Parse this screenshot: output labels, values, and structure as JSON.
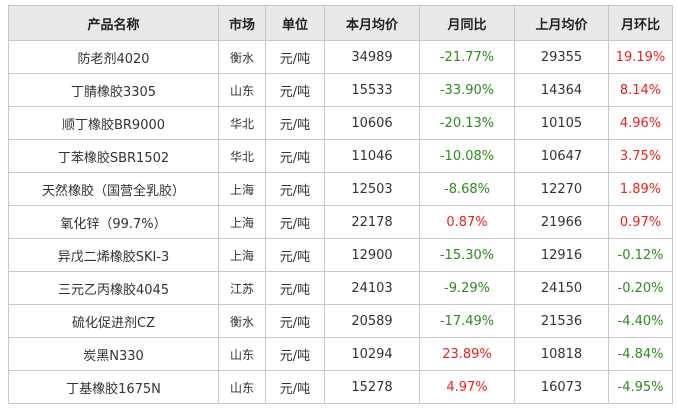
{
  "headers": [
    "产品名称",
    "市场",
    "单位",
    "本月均价",
    "月同比",
    "上月均价",
    "月环比"
  ],
  "colors": {
    "up": "#e8231d",
    "down": "#2e8b1f",
    "header_bg": "#e9e9e9",
    "border": "#c8c8c8"
  },
  "rows": [
    {
      "name": "防老剂4020",
      "market": "衡水",
      "unit": "元/吨",
      "price": "34989",
      "yoy": "-21.77%",
      "prev": "29355",
      "mom": "19.19%"
    },
    {
      "name": "丁腈橡胶3305",
      "market": "山东",
      "unit": "元/吨",
      "price": "15533",
      "yoy": "-33.90%",
      "prev": "14364",
      "mom": "8.14%"
    },
    {
      "name": "顺丁橡胶BR9000",
      "market": "华北",
      "unit": "元/吨",
      "price": "10606",
      "yoy": "-20.13%",
      "prev": "10105",
      "mom": "4.96%"
    },
    {
      "name": "丁苯橡胶SBR1502",
      "market": "华北",
      "unit": "元/吨",
      "price": "11046",
      "yoy": "-10.08%",
      "prev": "10647",
      "mom": "3.75%"
    },
    {
      "name": "天然橡胶（国营全乳胶）",
      "market": "上海",
      "unit": "元/吨",
      "price": "12503",
      "yoy": "-8.68%",
      "prev": "12270",
      "mom": "1.89%"
    },
    {
      "name": "氧化锌（99.7%）",
      "market": "上海",
      "unit": "元/吨",
      "price": "22178",
      "yoy": "0.87%",
      "prev": "21966",
      "mom": "0.97%"
    },
    {
      "name": "异戊二烯橡胶SKI-3",
      "market": "上海",
      "unit": "元/吨",
      "price": "12900",
      "yoy": "-15.30%",
      "prev": "12916",
      "mom": "-0.12%"
    },
    {
      "name": "三元乙丙橡胶4045",
      "market": "江苏",
      "unit": "元/吨",
      "price": "24103",
      "yoy": "-9.29%",
      "prev": "24150",
      "mom": "-0.20%"
    },
    {
      "name": "硫化促进剂CZ",
      "market": "衡水",
      "unit": "元/吨",
      "price": "20589",
      "yoy": "-17.49%",
      "prev": "21536",
      "mom": "-4.40%"
    },
    {
      "name": "炭黑N330",
      "market": "山东",
      "unit": "元/吨",
      "price": "10294",
      "yoy": "23.89%",
      "prev": "10818",
      "mom": "-4.84%"
    },
    {
      "name": "丁基橡胶1675N",
      "market": "山东",
      "unit": "元/吨",
      "price": "15278",
      "yoy": "4.97%",
      "prev": "16073",
      "mom": "-4.95%"
    }
  ]
}
